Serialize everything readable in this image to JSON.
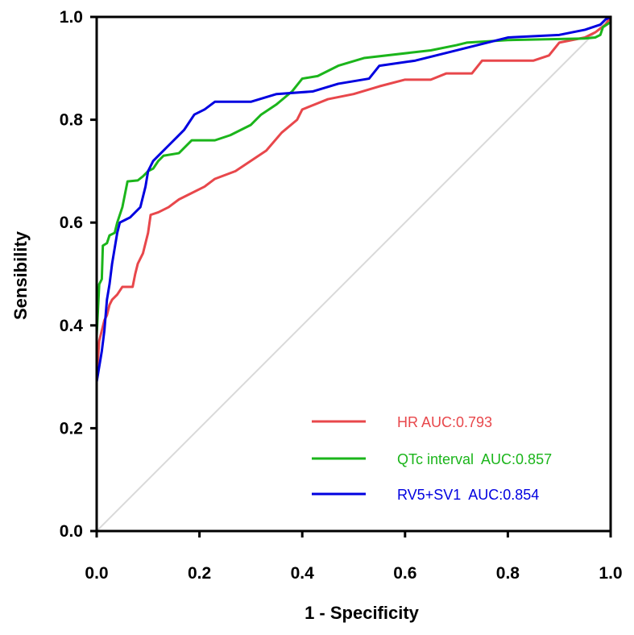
{
  "chart_data": {
    "type": "line",
    "title": "",
    "xlabel": "1 - Specificity",
    "ylabel": "Sensibility",
    "xlim": [
      0,
      1
    ],
    "ylim": [
      0,
      1
    ],
    "x_ticks": [
      "0.0",
      "0.2",
      "0.4",
      "0.6",
      "0.8",
      "1.0"
    ],
    "y_ticks": [
      "0.0",
      "0.2",
      "0.4",
      "0.6",
      "0.8",
      "1.0"
    ],
    "grid": false,
    "legend_position": "bottom-right",
    "reference_line": {
      "name": "reference diagonal",
      "color": "#d9d9d9",
      "points": [
        [
          0,
          0
        ],
        [
          1,
          1
        ]
      ]
    },
    "series": [
      {
        "name": "HR",
        "legend_label": "HR AUC:0.793",
        "auc": 0.793,
        "color": "#e8474b",
        "points": [
          [
            0,
            0
          ],
          [
            0,
            0.3
          ],
          [
            0.005,
            0.37
          ],
          [
            0.01,
            0.39
          ],
          [
            0.015,
            0.41
          ],
          [
            0.02,
            0.42
          ],
          [
            0.025,
            0.44
          ],
          [
            0.03,
            0.45
          ],
          [
            0.04,
            0.46
          ],
          [
            0.05,
            0.475
          ],
          [
            0.07,
            0.475
          ],
          [
            0.075,
            0.5
          ],
          [
            0.08,
            0.52
          ],
          [
            0.09,
            0.54
          ],
          [
            0.1,
            0.58
          ],
          [
            0.105,
            0.615
          ],
          [
            0.12,
            0.62
          ],
          [
            0.14,
            0.63
          ],
          [
            0.16,
            0.645
          ],
          [
            0.18,
            0.655
          ],
          [
            0.21,
            0.67
          ],
          [
            0.23,
            0.685
          ],
          [
            0.27,
            0.7
          ],
          [
            0.3,
            0.72
          ],
          [
            0.33,
            0.74
          ],
          [
            0.36,
            0.775
          ],
          [
            0.39,
            0.8
          ],
          [
            0.4,
            0.82
          ],
          [
            0.45,
            0.84
          ],
          [
            0.5,
            0.85
          ],
          [
            0.55,
            0.865
          ],
          [
            0.6,
            0.878
          ],
          [
            0.65,
            0.878
          ],
          [
            0.68,
            0.89
          ],
          [
            0.73,
            0.89
          ],
          [
            0.75,
            0.915
          ],
          [
            0.85,
            0.915
          ],
          [
            0.88,
            0.925
          ],
          [
            0.9,
            0.95
          ],
          [
            0.95,
            0.96
          ],
          [
            0.97,
            0.97
          ],
          [
            0.99,
            0.985
          ],
          [
            1,
            1
          ]
        ]
      },
      {
        "name": "QTc interval",
        "legend_label": "QTc interval  AUC:0.857",
        "auc": 0.857,
        "color": "#1bb51b",
        "points": [
          [
            0,
            0
          ],
          [
            0,
            0.38
          ],
          [
            0.005,
            0.48
          ],
          [
            0.01,
            0.49
          ],
          [
            0.012,
            0.555
          ],
          [
            0.02,
            0.56
          ],
          [
            0.025,
            0.575
          ],
          [
            0.035,
            0.58
          ],
          [
            0.04,
            0.6
          ],
          [
            0.05,
            0.63
          ],
          [
            0.055,
            0.655
          ],
          [
            0.06,
            0.68
          ],
          [
            0.08,
            0.682
          ],
          [
            0.09,
            0.69
          ],
          [
            0.1,
            0.7
          ],
          [
            0.11,
            0.705
          ],
          [
            0.12,
            0.72
          ],
          [
            0.13,
            0.73
          ],
          [
            0.16,
            0.735
          ],
          [
            0.185,
            0.76
          ],
          [
            0.23,
            0.76
          ],
          [
            0.26,
            0.77
          ],
          [
            0.3,
            0.79
          ],
          [
            0.32,
            0.81
          ],
          [
            0.35,
            0.83
          ],
          [
            0.38,
            0.855
          ],
          [
            0.4,
            0.88
          ],
          [
            0.43,
            0.885
          ],
          [
            0.47,
            0.905
          ],
          [
            0.52,
            0.92
          ],
          [
            0.65,
            0.935
          ],
          [
            0.7,
            0.945
          ],
          [
            0.72,
            0.95
          ],
          [
            0.8,
            0.955
          ],
          [
            0.95,
            0.958
          ],
          [
            0.97,
            0.96
          ],
          [
            0.98,
            0.965
          ],
          [
            0.985,
            0.98
          ],
          [
            1,
            0.99
          ]
        ]
      },
      {
        "name": "RV5+SV1",
        "legend_label": "RV5+SV1  AUC:0.854",
        "auc": 0.854,
        "color": "#0000e0",
        "points": [
          [
            0,
            0
          ],
          [
            0,
            0.29
          ],
          [
            0.005,
            0.32
          ],
          [
            0.01,
            0.35
          ],
          [
            0.015,
            0.39
          ],
          [
            0.02,
            0.45
          ],
          [
            0.025,
            0.48
          ],
          [
            0.03,
            0.52
          ],
          [
            0.035,
            0.55
          ],
          [
            0.04,
            0.58
          ],
          [
            0.045,
            0.6
          ],
          [
            0.055,
            0.605
          ],
          [
            0.065,
            0.61
          ],
          [
            0.075,
            0.62
          ],
          [
            0.085,
            0.63
          ],
          [
            0.095,
            0.67
          ],
          [
            0.1,
            0.7
          ],
          [
            0.11,
            0.72
          ],
          [
            0.125,
            0.735
          ],
          [
            0.14,
            0.75
          ],
          [
            0.155,
            0.765
          ],
          [
            0.17,
            0.78
          ],
          [
            0.19,
            0.81
          ],
          [
            0.21,
            0.82
          ],
          [
            0.23,
            0.835
          ],
          [
            0.3,
            0.835
          ],
          [
            0.35,
            0.85
          ],
          [
            0.42,
            0.855
          ],
          [
            0.47,
            0.87
          ],
          [
            0.53,
            0.88
          ],
          [
            0.55,
            0.905
          ],
          [
            0.62,
            0.915
          ],
          [
            0.68,
            0.93
          ],
          [
            0.8,
            0.96
          ],
          [
            0.9,
            0.965
          ],
          [
            0.95,
            0.975
          ],
          [
            0.98,
            0.985
          ],
          [
            0.99,
            0.995
          ],
          [
            1,
            1
          ]
        ]
      }
    ]
  }
}
